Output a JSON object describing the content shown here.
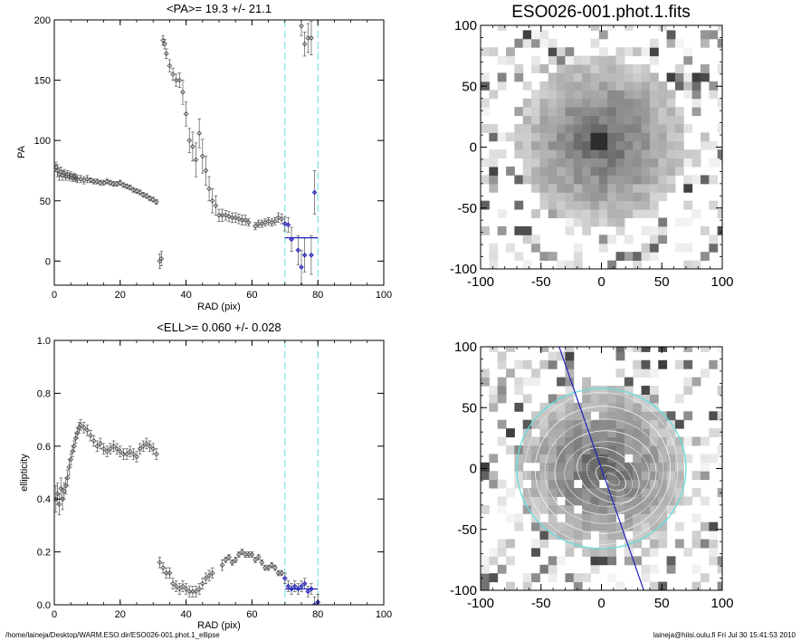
{
  "colors": {
    "axis": "#000000",
    "cyan": "#66dddd",
    "blue": "#2222bb",
    "marker": "#444444"
  },
  "chart_data": [
    {
      "type": "scatter",
      "title": "<PA>=  19.3 +/-  21.1",
      "xlabel": "RAD (pix)",
      "ylabel": "PA",
      "xlim": [
        0,
        100
      ],
      "ylim": [
        -20,
        200
      ],
      "xticks": [
        "0",
        "20",
        "40",
        "60",
        "80",
        "100"
      ],
      "yticks": [
        "0",
        "50",
        "100",
        "150",
        "200"
      ],
      "fit": {
        "from": 70,
        "to": 80,
        "value": 19.3
      },
      "bounds": [
        70,
        80
      ],
      "points": [
        [
          0.5,
          78,
          4
        ],
        [
          1,
          75,
          5
        ],
        [
          1.5,
          72,
          5
        ],
        [
          2,
          74,
          4
        ],
        [
          2.5,
          71,
          4
        ],
        [
          3,
          73,
          3
        ],
        [
          3.5,
          70,
          3
        ],
        [
          4,
          72,
          3
        ],
        [
          4.5,
          70,
          3
        ],
        [
          5,
          71,
          3
        ],
        [
          5.5,
          69,
          3
        ],
        [
          6,
          70,
          3
        ],
        [
          6.5,
          69,
          3
        ],
        [
          7,
          68,
          3
        ],
        [
          8,
          68,
          3
        ],
        [
          9,
          67,
          3
        ],
        [
          10,
          68,
          3
        ],
        [
          11,
          67,
          2
        ],
        [
          12,
          66,
          2
        ],
        [
          13,
          66,
          2
        ],
        [
          14,
          65,
          2
        ],
        [
          15,
          65,
          2
        ],
        [
          16,
          66,
          2
        ],
        [
          17,
          65,
          2
        ],
        [
          18,
          64,
          2
        ],
        [
          19,
          64,
          2
        ],
        [
          20,
          65,
          2
        ],
        [
          21,
          63,
          2
        ],
        [
          22,
          62,
          2
        ],
        [
          23,
          61,
          2
        ],
        [
          24,
          59,
          2
        ],
        [
          25,
          58,
          2
        ],
        [
          26,
          57,
          2
        ],
        [
          27,
          55,
          2
        ],
        [
          28,
          54,
          2
        ],
        [
          29,
          52,
          2
        ],
        [
          30,
          51,
          2
        ],
        [
          31,
          49,
          2
        ],
        [
          32,
          0,
          6
        ],
        [
          32.5,
          2,
          6
        ],
        [
          33,
          183,
          4
        ],
        [
          33.5,
          180,
          4
        ],
        [
          34,
          172,
          4
        ],
        [
          35,
          162,
          5
        ],
        [
          36,
          155,
          5
        ],
        [
          37,
          150,
          5
        ],
        [
          38,
          150,
          6
        ],
        [
          39,
          140,
          10
        ],
        [
          40,
          122,
          10
        ],
        [
          41,
          100,
          10
        ],
        [
          42,
          95,
          12
        ],
        [
          43,
          84,
          14
        ],
        [
          44,
          106,
          12
        ],
        [
          45,
          87,
          14
        ],
        [
          46,
          75,
          12
        ],
        [
          47,
          60,
          10
        ],
        [
          48,
          50,
          10
        ],
        [
          49,
          46,
          8
        ],
        [
          50,
          38,
          5
        ],
        [
          51,
          38,
          5
        ],
        [
          52,
          38,
          4
        ],
        [
          53,
          37,
          4
        ],
        [
          54,
          36,
          4
        ],
        [
          55,
          36,
          4
        ],
        [
          56,
          35,
          4
        ],
        [
          57,
          34,
          4
        ],
        [
          58,
          34,
          4
        ],
        [
          59,
          32,
          3
        ],
        [
          61,
          29,
          3
        ],
        [
          62,
          31,
          3
        ],
        [
          63,
          31,
          3
        ],
        [
          64,
          32,
          3
        ],
        [
          65,
          33,
          3
        ],
        [
          66,
          32,
          3
        ],
        [
          67,
          33,
          3
        ],
        [
          68,
          36,
          4
        ],
        [
          69,
          35,
          4
        ],
        [
          75,
          195,
          8
        ],
        [
          76,
          180,
          10
        ],
        [
          77,
          185,
          12
        ],
        [
          78,
          185,
          14
        ]
      ],
      "blue_points": [
        [
          70,
          31,
          6
        ],
        [
          71,
          30,
          6
        ],
        [
          72,
          18,
          10
        ],
        [
          74,
          9,
          12
        ],
        [
          75,
          -5,
          14
        ],
        [
          76,
          5,
          14
        ],
        [
          78,
          5,
          16
        ],
        [
          79,
          57,
          18
        ]
      ]
    },
    {
      "type": "scatter",
      "title": "<ELL>= 0.060 +/-  0.028",
      "xlabel": "RAD (pix)",
      "ylabel": "ellipticity",
      "xlim": [
        0,
        100
      ],
      "ylim": [
        0,
        1
      ],
      "xticks": [
        "0",
        "20",
        "40",
        "60",
        "80",
        "100"
      ],
      "yticks": [
        "0.0",
        "0.2",
        "0.4",
        "0.6",
        "0.8",
        "1.0"
      ],
      "fit": {
        "from": 70,
        "to": 80,
        "value": 0.06
      },
      "bounds": [
        70,
        80
      ],
      "points": [
        [
          0.5,
          0.4,
          0.05
        ],
        [
          1,
          0.42,
          0.04
        ],
        [
          1.5,
          0.38,
          0.04
        ],
        [
          2,
          0.44,
          0.04
        ],
        [
          2.5,
          0.4,
          0.04
        ],
        [
          3,
          0.43,
          0.03
        ],
        [
          3.5,
          0.45,
          0.03
        ],
        [
          4,
          0.48,
          0.03
        ],
        [
          4.5,
          0.52,
          0.03
        ],
        [
          5,
          0.55,
          0.02
        ],
        [
          5.5,
          0.58,
          0.02
        ],
        [
          6,
          0.6,
          0.02
        ],
        [
          6.5,
          0.63,
          0.02
        ],
        [
          7,
          0.65,
          0.02
        ],
        [
          7.5,
          0.67,
          0.02
        ],
        [
          8,
          0.68,
          0.02
        ],
        [
          9,
          0.67,
          0.02
        ],
        [
          10,
          0.66,
          0.02
        ],
        [
          11,
          0.64,
          0.02
        ],
        [
          12,
          0.62,
          0.02
        ],
        [
          13,
          0.6,
          0.02
        ],
        [
          14,
          0.61,
          0.02
        ],
        [
          15,
          0.59,
          0.02
        ],
        [
          16,
          0.58,
          0.02
        ],
        [
          17,
          0.59,
          0.02
        ],
        [
          18,
          0.6,
          0.02
        ],
        [
          19,
          0.59,
          0.02
        ],
        [
          20,
          0.58,
          0.02
        ],
        [
          21,
          0.57,
          0.02
        ],
        [
          22,
          0.57,
          0.02
        ],
        [
          23,
          0.58,
          0.02
        ],
        [
          24,
          0.57,
          0.02
        ],
        [
          25,
          0.56,
          0.02
        ],
        [
          26,
          0.59,
          0.02
        ],
        [
          27,
          0.6,
          0.02
        ],
        [
          28,
          0.61,
          0.02
        ],
        [
          29,
          0.6,
          0.02
        ],
        [
          30,
          0.59,
          0.02
        ],
        [
          31,
          0.57,
          0.02
        ],
        [
          32,
          0.16,
          0.02
        ],
        [
          33,
          0.14,
          0.02
        ],
        [
          34,
          0.12,
          0.02
        ],
        [
          35,
          0.12,
          0.02
        ],
        [
          36,
          0.08,
          0.02
        ],
        [
          37,
          0.07,
          0.02
        ],
        [
          38,
          0.06,
          0.02
        ],
        [
          39,
          0.07,
          0.02
        ],
        [
          40,
          0.06,
          0.02
        ],
        [
          41,
          0.05,
          0.02
        ],
        [
          42,
          0.05,
          0.02
        ],
        [
          43,
          0.05,
          0.02
        ],
        [
          44,
          0.06,
          0.02
        ],
        [
          45,
          0.08,
          0.02
        ],
        [
          46,
          0.1,
          0.02
        ],
        [
          47,
          0.11,
          0.02
        ],
        [
          48,
          0.12,
          0.02
        ],
        [
          51,
          0.15,
          0.02
        ],
        [
          52,
          0.17,
          0.01
        ],
        [
          53,
          0.18,
          0.01
        ],
        [
          54,
          0.16,
          0.01
        ],
        [
          55,
          0.17,
          0.01
        ],
        [
          56,
          0.19,
          0.01
        ],
        [
          57,
          0.2,
          0.01
        ],
        [
          58,
          0.19,
          0.01
        ],
        [
          59,
          0.19,
          0.01
        ],
        [
          60,
          0.19,
          0.01
        ],
        [
          61,
          0.17,
          0.01
        ],
        [
          62,
          0.18,
          0.01
        ],
        [
          63,
          0.16,
          0.01
        ],
        [
          64,
          0.14,
          0.01
        ],
        [
          65,
          0.14,
          0.01
        ],
        [
          66,
          0.15,
          0.01
        ],
        [
          67,
          0.14,
          0.01
        ],
        [
          68,
          0.12,
          0.01
        ],
        [
          69,
          0.12,
          0.01
        ]
      ],
      "blue_points": [
        [
          70,
          0.1,
          0.02
        ],
        [
          71,
          0.07,
          0.02
        ],
        [
          72,
          0.06,
          0.02
        ],
        [
          73,
          0.07,
          0.02
        ],
        [
          74,
          0.06,
          0.02
        ],
        [
          75,
          0.07,
          0.02
        ],
        [
          76,
          0.08,
          0.02
        ],
        [
          77,
          0.05,
          0.02
        ],
        [
          78,
          0.06,
          0.02
        ],
        [
          79,
          0.0,
          0.03
        ],
        [
          80,
          0.01,
          0.03
        ]
      ]
    },
    {
      "type": "heatmap",
      "title": "ESO026-001.phot.1.fits",
      "xlim": [
        -100,
        100
      ],
      "ylim": [
        -100,
        100
      ],
      "xticks": [
        "-100",
        "-50",
        "0",
        "50",
        "100"
      ],
      "yticks": [
        "-100",
        "-50",
        "0",
        "50",
        "100"
      ],
      "galaxy": {
        "center": [
          0,
          5
        ],
        "radius": 70
      }
    },
    {
      "type": "heatmap",
      "title": "",
      "xlim": [
        -100,
        100
      ],
      "ylim": [
        -100,
        100
      ],
      "xticks": [
        "-100",
        "-50",
        "0",
        "50",
        "100"
      ],
      "yticks": [
        "-100",
        "-50",
        "0",
        "50",
        "100"
      ],
      "galaxy": {
        "center": [
          0,
          0
        ],
        "radius": 70
      },
      "fit_ellipse": {
        "semi_major": 70,
        "pa_deg": 19.3,
        "ell": 0.06
      }
    }
  ],
  "footer": {
    "left": "/home/laineja/Desktop/WARM.ESO.dir/ESO026-001.phot.1_ellipse",
    "right": "laineja@hiisi.oulu.fi  Fri Jul 30 15:41:53 2010"
  }
}
